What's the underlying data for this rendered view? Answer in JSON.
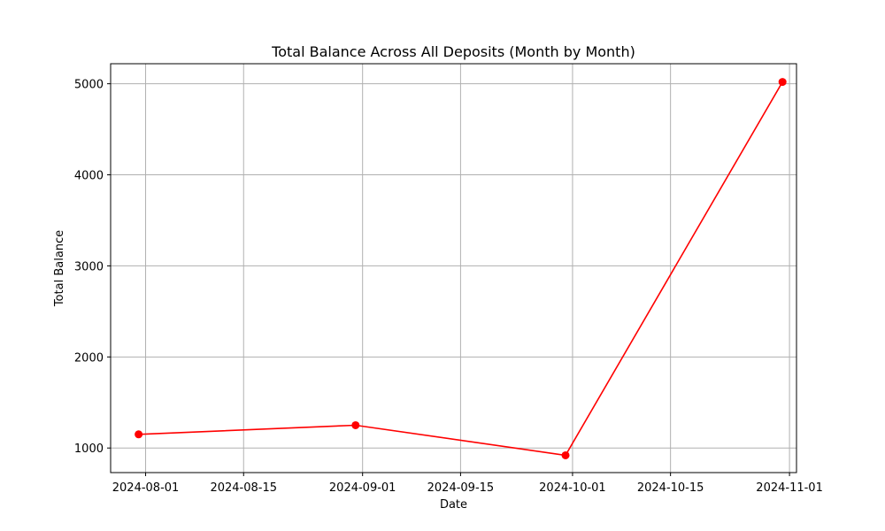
{
  "chart_data": {
    "type": "line",
    "title": "Total Balance Across All Deposits (Month by Month)",
    "xlabel": "Date",
    "ylabel": "Total Balance",
    "x_is_date": true,
    "xlim": [
      "2024-07-27",
      "2024-11-02"
    ],
    "ylim": [
      730,
      5220
    ],
    "x_ticks": [
      "2024-08-01",
      "2024-08-15",
      "2024-09-01",
      "2024-09-15",
      "2024-10-01",
      "2024-10-15",
      "2024-11-01"
    ],
    "y_ticks": [
      1000,
      2000,
      3000,
      4000,
      5000
    ],
    "grid": true,
    "series": [
      {
        "name": "Total Balance",
        "color": "#ff0000",
        "marker": "circle",
        "x": [
          "2024-07-31",
          "2024-08-31",
          "2024-09-30",
          "2024-10-31"
        ],
        "values": [
          1150,
          1250,
          920,
          5020
        ]
      }
    ]
  }
}
